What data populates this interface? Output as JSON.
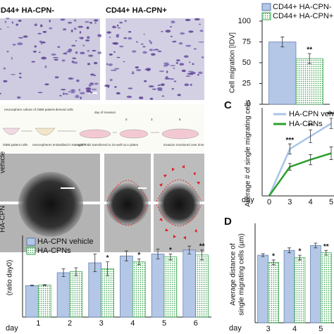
{
  "images": {
    "labels": [
      "CD44+ HA-CPN-",
      "CD44+ HA-CPN+"
    ],
    "rows": [
      "vehicle",
      "HA-CPN"
    ]
  },
  "schematic": {
    "steps": [
      "neurosphere culture of GBM patient-derived cells",
      "GBM patient cells",
      "neurospheres embedded in Matrigel™",
      "spheroids transferred to 24-well ULA plates",
      "invasion monitored over time"
    ],
    "day_label": "day of invasion",
    "days": [
      "0",
      "3",
      "6"
    ]
  },
  "chart_data": [
    {
      "type": "bar",
      "ylabel": "Cell migration [IDV]",
      "categories": [
        null
      ],
      "ylim": [
        0,
        100
      ],
      "yticks": [
        0,
        25,
        50,
        75,
        100
      ],
      "series": [
        {
          "name": "CD44+ HA-CPN-",
          "color": "#b4c7e7",
          "values": [
            75
          ],
          "errors": [
            6
          ],
          "annotations": [
            null
          ]
        },
        {
          "name": "CD44+ HA-CPN+",
          "color": "#2e9e44",
          "pattern": "dots",
          "values": [
            55
          ],
          "errors": [
            6
          ],
          "annotations": [
            "**"
          ]
        }
      ]
    },
    {
      "type": "line",
      "label": "C",
      "xlabel": "day",
      "ylabel": "Average # of single migrating cells",
      "categories": [
        "0",
        "3",
        "4",
        "5"
      ],
      "ylim": [
        0,
        200
      ],
      "series": [
        {
          "name": "HA-CPN vehicle",
          "color": "#a9c4e8",
          "values": [
            0,
            110,
            140,
            170
          ],
          "errors": [
            0,
            12,
            15,
            12
          ],
          "annotations": [
            null,
            "***",
            "**",
            "***"
          ]
        },
        {
          "name": "HA-CPNs",
          "color": "#2ca02c",
          "values": [
            0,
            68,
            85,
            100
          ],
          "errors": [
            0,
            8,
            12,
            15
          ],
          "annotations": [
            null,
            null,
            null,
            null
          ]
        }
      ]
    },
    {
      "type": "bar",
      "xlabel": "day",
      "ylabel": "(ratio day0)",
      "categories": [
        "1",
        "2",
        "3",
        "4",
        "5",
        "6"
      ],
      "ylim": [
        0,
        4
      ],
      "series": [
        {
          "name": "HA-CPN vehicle",
          "color": "#b4c7e7",
          "values": [
            1.6,
            2.25,
            2.75,
            3.1,
            3.2,
            3.4
          ],
          "errors": [
            0.02,
            0.2,
            0.45,
            0.25,
            0.25,
            0.2
          ],
          "annotations": [
            null,
            null,
            null,
            null,
            null,
            null
          ]
        },
        {
          "name": "HA-CPNs",
          "color": "#2e9e44",
          "pattern": "dots",
          "values": [
            1.62,
            2.3,
            2.45,
            2.8,
            3.05,
            3.15
          ],
          "errors": [
            0.02,
            0.2,
            0.35,
            0.15,
            0.15,
            0.25
          ],
          "annotations": [
            null,
            null,
            "*",
            "*",
            "*",
            "**"
          ]
        }
      ]
    },
    {
      "type": "bar",
      "label": "D",
      "xlabel": "day",
      "ylabel": [
        "Average distance of",
        "single migrating cells (µm)"
      ],
      "categories": [
        "3",
        "4",
        "5"
      ],
      "ylim": [
        0,
        2
      ],
      "series": [
        {
          "color": "#b4c7e7",
          "values": [
            1.4,
            1.5,
            1.6
          ],
          "errors": [
            0.03,
            0.05,
            0.05
          ],
          "annotations": [
            null,
            null,
            null
          ]
        },
        {
          "color": "#2e9e44",
          "pattern": "dots",
          "values": [
            1.25,
            1.35,
            1.45
          ],
          "errors": [
            0.05,
            0.05,
            0.05
          ],
          "annotations": [
            "*",
            "*",
            "**"
          ]
        }
      ]
    }
  ]
}
